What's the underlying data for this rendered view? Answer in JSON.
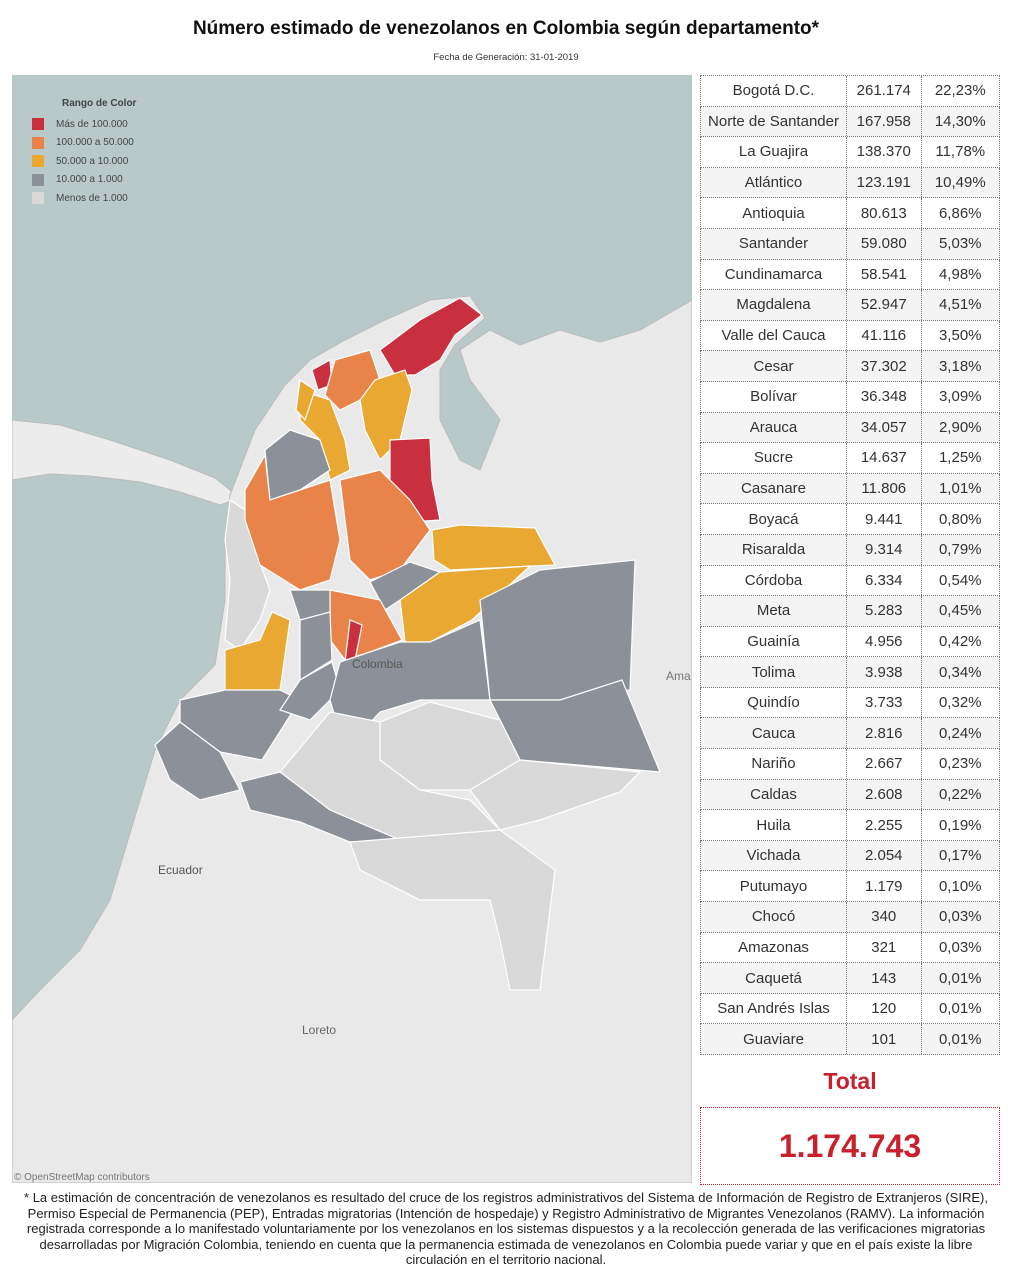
{
  "header": {
    "title": "Número estimado de venezolanos en Colombia según departamento*",
    "subtitle": "Fecha de Generación: 31-01-2019"
  },
  "legend": {
    "title": "Rango de Color",
    "items": [
      {
        "label": "Más de 100.000",
        "color": "#c8303f"
      },
      {
        "label": "100.000 a 50.000",
        "color": "#e8844a"
      },
      {
        "label": "50.000 a 10.000",
        "color": "#e8a832"
      },
      {
        "label": "10.000 a 1.000",
        "color": "#8c9199"
      },
      {
        "label": "Menos de 1.000",
        "color": "#d9d9d9"
      }
    ]
  },
  "map_labels": {
    "colombia": "Colombia",
    "ecuador": "Ecuador",
    "loreto": "Loreto",
    "ama": "Ama",
    "attribution": "© OpenStreetMap contributors"
  },
  "table": {
    "rows": [
      [
        "Bogotá D.C.",
        "261.174",
        "22,23%"
      ],
      [
        "Norte de Santander",
        "167.958",
        "14,30%"
      ],
      [
        "La Guajira",
        "138.370",
        "11,78%"
      ],
      [
        "Atlántico",
        "123.191",
        "10,49%"
      ],
      [
        "Antioquia",
        "80.613",
        "6,86%"
      ],
      [
        "Santander",
        "59.080",
        "5,03%"
      ],
      [
        "Cundinamarca",
        "58.541",
        "4,98%"
      ],
      [
        "Magdalena",
        "52.947",
        "4,51%"
      ],
      [
        "Valle del Cauca",
        "41.116",
        "3,50%"
      ],
      [
        "Cesar",
        "37.302",
        "3,18%"
      ],
      [
        "Bolívar",
        "36.348",
        "3,09%"
      ],
      [
        "Arauca",
        "34.057",
        "2,90%"
      ],
      [
        "Sucre",
        "14.637",
        "1,25%"
      ],
      [
        "Casanare",
        "11.806",
        "1,01%"
      ],
      [
        "Boyacá",
        "9.441",
        "0,80%"
      ],
      [
        "Risaralda",
        "9.314",
        "0,79%"
      ],
      [
        "Córdoba",
        "6.334",
        "0,54%"
      ],
      [
        "Meta",
        "5.283",
        "0,45%"
      ],
      [
        "Guainía",
        "4.956",
        "0,42%"
      ],
      [
        "Tolima",
        "3.938",
        "0,34%"
      ],
      [
        "Quindío",
        "3.733",
        "0,32%"
      ],
      [
        "Cauca",
        "2.816",
        "0,24%"
      ],
      [
        "Nariño",
        "2.667",
        "0,23%"
      ],
      [
        "Caldas",
        "2.608",
        "0,22%"
      ],
      [
        "Huila",
        "2.255",
        "0,19%"
      ],
      [
        "Vichada",
        "2.054",
        "0,17%"
      ],
      [
        "Putumayo",
        "1.179",
        "0,10%"
      ],
      [
        "Chocó",
        "340",
        "0,03%"
      ],
      [
        "Amazonas",
        "321",
        "0,03%"
      ],
      [
        "Caquetá",
        "143",
        "0,01%"
      ],
      [
        "San Andrés Islas",
        "120",
        "0,01%"
      ],
      [
        "Guaviare",
        "101",
        "0,01%"
      ]
    ]
  },
  "total": {
    "label": "Total",
    "value": "1.174.743"
  },
  "footnote": "* La estimación de concentración de venezolanos es resultado del cruce de los registros administrativos del Sistema de Información de Registro de Extranjeros (SIRE), Permiso Especial de Permanencia (PEP), Entradas migratorias (Intención de hospedaje) y Registro Administrativo de Migrantes Venezolanos (RAMV). La información registrada corresponde a lo manifestado voluntariamente por los venezolanos en los sistemas dispuestos y a la recolección generada de las verificaciones migratorias desarrolladas por Migración Colombia, teniendo en cuenta que la permanencia estimada de venezolanos en Colombia puede variar y que en el país existe la libre circulación en el territorio nacional."
}
